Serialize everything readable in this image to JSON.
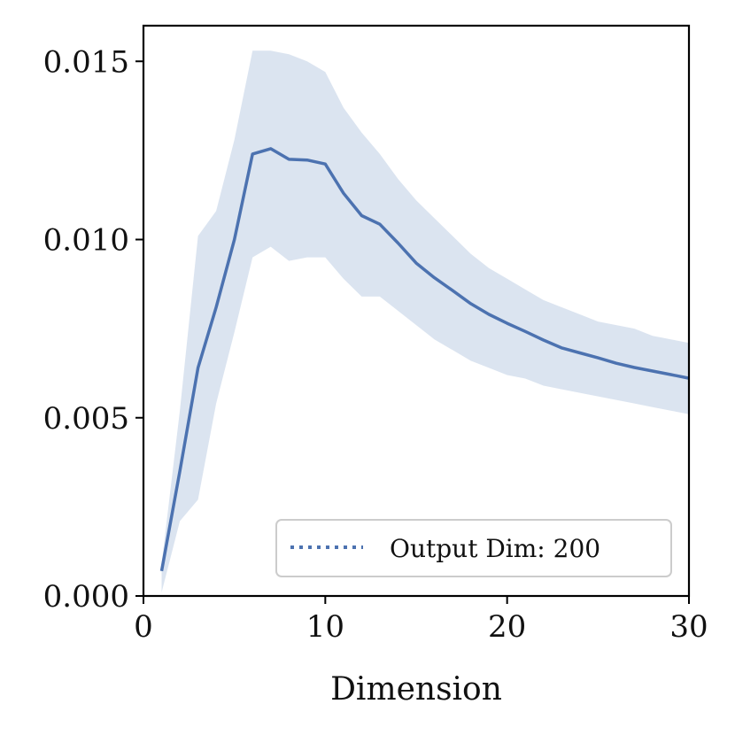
{
  "chart_data": {
    "type": "line",
    "title": "",
    "xlabel": "Dimension",
    "ylabel": "",
    "xlim": [
      0,
      30
    ],
    "ylim": [
      0,
      0.016
    ],
    "xticks": [
      0,
      10,
      20,
      30
    ],
    "xtick_labels": [
      "0",
      "10",
      "20",
      "30"
    ],
    "yticks": [
      0,
      0.005,
      0.01,
      0.015
    ],
    "ytick_labels": [
      "0.000",
      "0.005",
      "0.010",
      "0.015"
    ],
    "grid": false,
    "legend_position": "bottom-right",
    "colors": {
      "line": "#4c72b0",
      "band": "#dbe4f0",
      "axis": "#000000",
      "legend_border": "#cccccc"
    },
    "series": [
      {
        "name": "Output Dim: 200",
        "x": [
          1,
          2,
          3,
          4,
          5,
          6,
          7,
          8,
          9,
          10,
          11,
          12,
          13,
          14,
          15,
          16,
          17,
          18,
          19,
          20,
          21,
          22,
          23,
          24,
          25,
          26,
          27,
          28,
          29,
          30
        ],
        "y": [
          0.0007,
          0.0035,
          0.0064,
          0.0081,
          0.01,
          0.0124,
          0.01255,
          0.01225,
          0.01223,
          0.01212,
          0.0113,
          0.01067,
          0.01043,
          0.0099,
          0.00934,
          0.00893,
          0.00857,
          0.0082,
          0.0079,
          0.00765,
          0.00742,
          0.00718,
          0.00696,
          0.00682,
          0.00668,
          0.00653,
          0.00641,
          0.00631,
          0.00621,
          0.00611
        ],
        "y_lower": [
          0.0001,
          0.0021,
          0.0027,
          0.0054,
          0.0074,
          0.0095,
          0.0098,
          0.0094,
          0.0095,
          0.0095,
          0.0089,
          0.0084,
          0.0084,
          0.008,
          0.0076,
          0.0072,
          0.0069,
          0.0066,
          0.0064,
          0.0062,
          0.0061,
          0.0059,
          0.0058,
          0.0057,
          0.0056,
          0.0055,
          0.0054,
          0.0053,
          0.0052,
          0.0051
        ],
        "y_upper": [
          0.0009,
          0.0052,
          0.0101,
          0.0108,
          0.0128,
          0.0153,
          0.0153,
          0.0152,
          0.015,
          0.0147,
          0.0137,
          0.013,
          0.0124,
          0.0117,
          0.0111,
          0.0106,
          0.0101,
          0.0096,
          0.0092,
          0.0089,
          0.0086,
          0.0083,
          0.0081,
          0.0079,
          0.0077,
          0.0076,
          0.0075,
          0.0073,
          0.0072,
          0.0071
        ]
      }
    ]
  }
}
